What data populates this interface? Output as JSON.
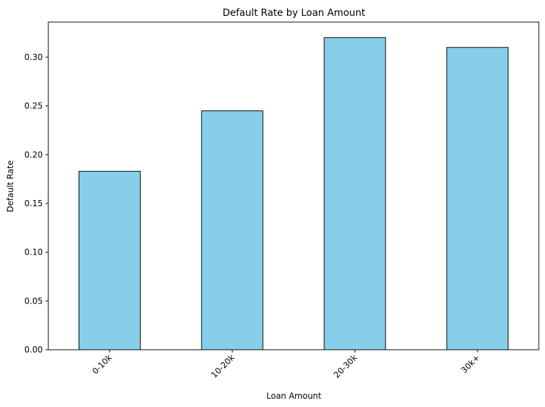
{
  "chart_data": {
    "type": "bar",
    "title": "Default Rate by Loan Amount",
    "xlabel": "Loan Amount",
    "ylabel": "Default Rate",
    "categories": [
      "0-10k",
      "10-20k",
      "20-30k",
      "30k+"
    ],
    "values": [
      0.183,
      0.245,
      0.32,
      0.31
    ],
    "ylim": [
      0,
      0.336
    ],
    "yticks": [
      0.0,
      0.05,
      0.1,
      0.15,
      0.2,
      0.25,
      0.3
    ],
    "ytick_labels": [
      "0.00",
      "0.05",
      "0.10",
      "0.15",
      "0.20",
      "0.25",
      "0.30"
    ],
    "xtick_rotation": 45,
    "grid": false,
    "bar_color": "#87ceeb",
    "edge_color": "#000000"
  }
}
